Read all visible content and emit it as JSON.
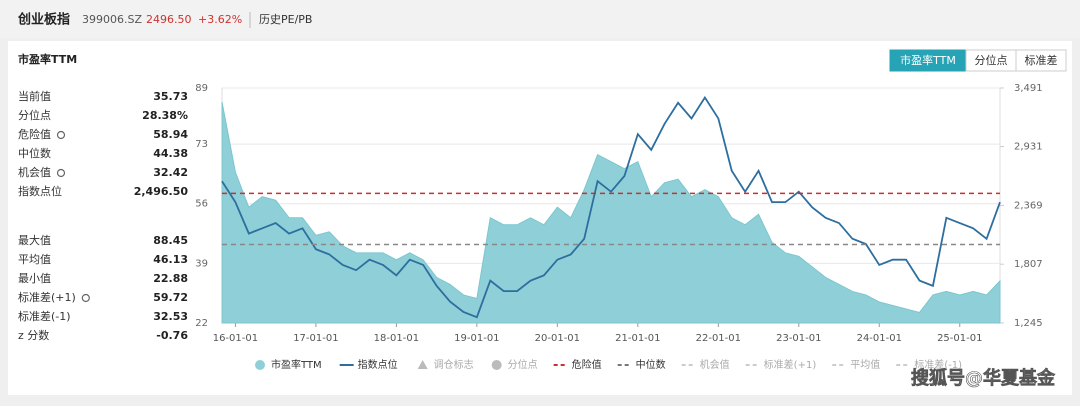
{
  "header": {
    "name": "创业板指",
    "code": "399006.SZ",
    "price": "2496.50",
    "change": "+3.62%",
    "link": "历史PE/PB"
  },
  "card": {
    "title": "市盈率TTM",
    "tabs": [
      "市盈率TTM",
      "分位点",
      "标准差"
    ],
    "active_tab": 0
  },
  "stats": [
    [
      {
        "label": "当前值",
        "value": 35.73
      },
      {
        "label": "分位点",
        "value": "28.38%"
      },
      {
        "label": "危险值",
        "value": 58.94,
        "icon": true
      },
      {
        "label": "中位数",
        "value": 44.38
      },
      {
        "label": "机会值",
        "value": 32.42,
        "icon": true
      },
      {
        "label": "指数点位",
        "value": "2,496.50"
      }
    ],
    [
      {
        "label": "最大值",
        "value": 88.45
      },
      {
        "label": "平均值",
        "value": 46.13
      },
      {
        "label": "最小值",
        "value": 22.88
      },
      {
        "label": "标准差(+1)",
        "value": 59.72,
        "icon": true
      },
      {
        "label": "标准差(-1)",
        "value": 32.53
      },
      {
        "label": "z 分数",
        "value": -0.76
      }
    ]
  ],
  "chart_data": {
    "type": "line",
    "x": [
      "15-11-01",
      "16-01-01",
      "16-03-01",
      "16-05-01",
      "16-07-01",
      "16-09-01",
      "16-11-01",
      "17-01-01",
      "17-03-01",
      "17-05-01",
      "17-07-01",
      "17-09-01",
      "17-11-01",
      "18-01-01",
      "18-03-01",
      "18-05-01",
      "18-07-01",
      "18-09-01",
      "18-11-01",
      "19-01-01",
      "19-03-01",
      "19-05-01",
      "19-07-01",
      "19-09-01",
      "19-11-01",
      "20-01-01",
      "20-03-01",
      "20-05-01",
      "20-07-01",
      "20-09-01",
      "20-11-01",
      "21-01-01",
      "21-03-01",
      "21-05-01",
      "21-07-01",
      "21-09-01",
      "21-11-01",
      "22-01-01",
      "22-03-01",
      "22-05-01",
      "22-07-01",
      "22-09-01",
      "22-11-01",
      "23-01-01",
      "23-03-01",
      "23-05-01",
      "23-07-01",
      "23-09-01",
      "23-11-01",
      "24-01-01",
      "24-03-01",
      "24-05-01",
      "24-07-01",
      "24-09-01",
      "24-11-01",
      "25-01-01",
      "25-03-01",
      "25-05-01",
      "25-07-01"
    ],
    "xlim": [
      "15-11-01",
      "25-07-01"
    ],
    "xticks": [
      "16-01-01",
      "17-01-01",
      "18-01-01",
      "19-01-01",
      "20-01-01",
      "21-01-01",
      "22-01-01",
      "23-01-01",
      "24-01-01",
      "25-01-01"
    ],
    "series": [
      {
        "name": "市盈率TTM",
        "color": "#8fd0d8",
        "axis": "y",
        "values": [
          85,
          65,
          55,
          58,
          57,
          52,
          52,
          47,
          48,
          44,
          42,
          42,
          42,
          40,
          42,
          40,
          35,
          33,
          30,
          29,
          52,
          50,
          50,
          52,
          50,
          55,
          52,
          60,
          70,
          68,
          66,
          68,
          58,
          62,
          63,
          58,
          60,
          58,
          52,
          50,
          53,
          45,
          42,
          41,
          38,
          35,
          33,
          31,
          30,
          28,
          27,
          26,
          25,
          30,
          31,
          30,
          31,
          30,
          34
        ]
      },
      {
        "name": "指数点位",
        "color": "#2d6e9e",
        "axis": "y2",
        "values": [
          2600,
          2400,
          2100,
          2150,
          2200,
          2100,
          2150,
          1950,
          1900,
          1800,
          1750,
          1850,
          1800,
          1700,
          1850,
          1800,
          1600,
          1450,
          1350,
          1300,
          1650,
          1550,
          1550,
          1650,
          1700,
          1850,
          1900,
          2050,
          2600,
          2500,
          2650,
          3050,
          2900,
          3150,
          3350,
          3200,
          3400,
          3200,
          2700,
          2500,
          2700,
          2400,
          2400,
          2500,
          2350,
          2250,
          2200,
          2050,
          2000,
          1800,
          1850,
          1850,
          1650,
          1600,
          2250,
          2200,
          2150,
          2050,
          2400
        ]
      }
    ],
    "ylim": [
      22,
      89
    ],
    "yticks": [
      22,
      39,
      56,
      73,
      89
    ],
    "y2lim": [
      1245,
      3491
    ],
    "y2ticks": [
      {
        "value": 1245,
        "label": "1,245"
      },
      {
        "value": 1807,
        "label": "1,807"
      },
      {
        "value": 2369,
        "label": "2,369"
      },
      {
        "value": 2931,
        "label": "2,931"
      },
      {
        "value": 3491,
        "label": "3,491"
      }
    ],
    "reference_lines": [
      {
        "name": "危险值",
        "color": "#c8302c"
      },
      {
        "name": "中位数",
        "color": "#888888"
      }
    ],
    "legend_extra": [
      {
        "name": "调仓标志",
        "symbol": "triangle"
      },
      {
        "name": "分位点",
        "symbol": "circle"
      },
      {
        "name": "危险值",
        "symbol": "dash",
        "color": "#c8302c"
      },
      {
        "name": "中位数",
        "symbol": "dash",
        "color": "#777777"
      },
      {
        "name": "机会值",
        "symbol": "dash",
        "color": "#cccccc"
      },
      {
        "name": "标准差(+1)",
        "symbol": "dash",
        "color": "#cccccc"
      },
      {
        "name": "平均值",
        "symbol": "dash",
        "color": "#cccccc"
      },
      {
        "name": "标准差(-1)",
        "symbol": "dash",
        "color": "#cccccc"
      }
    ],
    "grid": true
  },
  "watermark": "搜狐号@华夏基金"
}
